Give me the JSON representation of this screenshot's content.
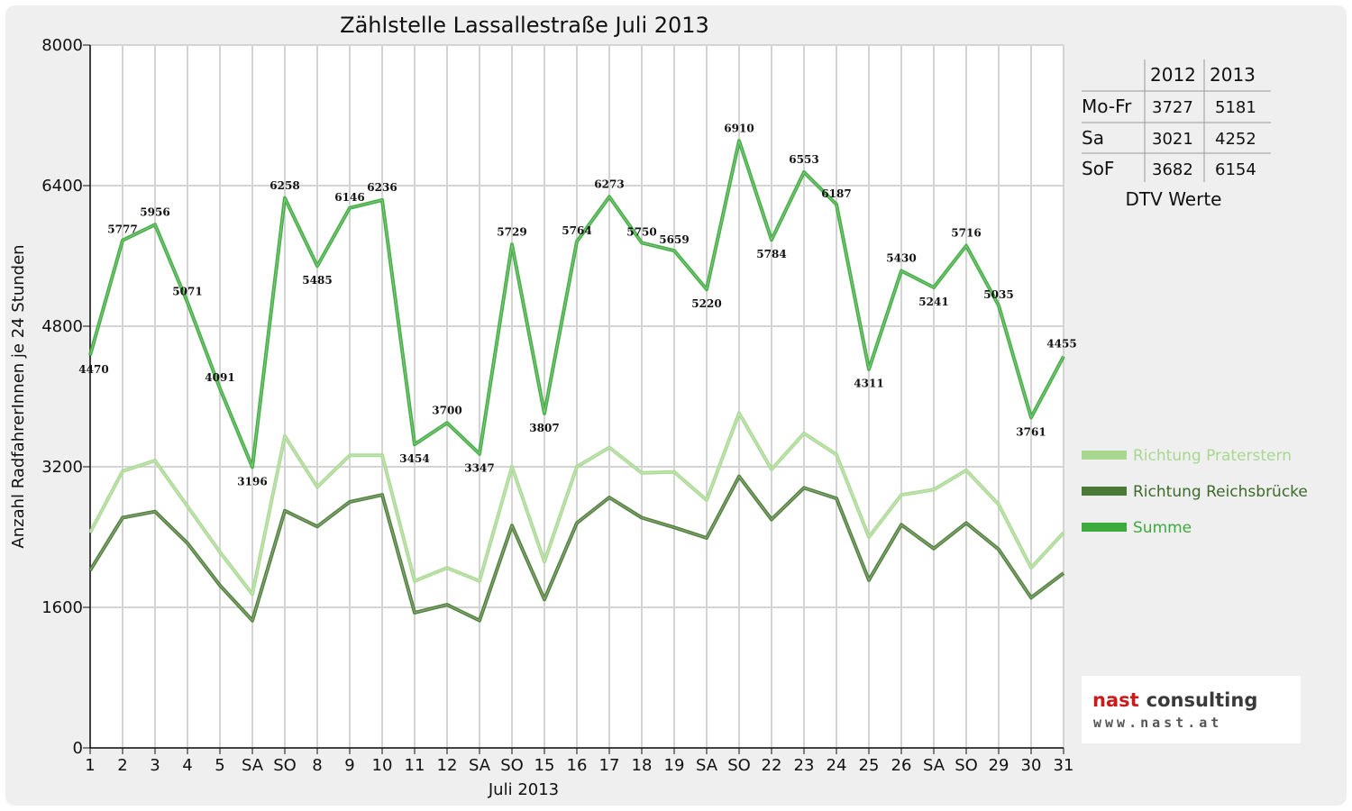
{
  "chart_data": {
    "type": "line",
    "title": "Zählstelle Lassallestraße Juli 2013",
    "xlabel": "Juli 2013",
    "ylabel": "Anzahl RadfahrerInnen je 24 Stunden",
    "ylim": [
      0,
      8000
    ],
    "yticks": [
      0,
      1600,
      3200,
      4800,
      6400,
      8000
    ],
    "categories": [
      "1",
      "2",
      "3",
      "4",
      "5",
      "SA",
      "SO",
      "8",
      "9",
      "10",
      "11",
      "12",
      "SA",
      "SO",
      "15",
      "16",
      "17",
      "18",
      "19",
      "SA",
      "SO",
      "22",
      "23",
      "24",
      "25",
      "26",
      "SA",
      "SO",
      "29",
      "30",
      "31"
    ],
    "highlight_categories": [
      "SO"
    ],
    "highlight_color": "#e00000",
    "grid": true,
    "legend_position": "right",
    "series": [
      {
        "name": "Richtung Praterstern",
        "color": "#a8d890",
        "values": [
          2450,
          3150,
          3270,
          2750,
          2230,
          1750,
          3550,
          2970,
          3330,
          3330,
          1900,
          2050,
          1900,
          3200,
          2120,
          3200,
          3420,
          3130,
          3140,
          2820,
          3810,
          3170,
          3580,
          3340,
          2400,
          2880,
          2940,
          3160,
          2770,
          2050,
          2450
        ]
      },
      {
        "name": "Richtung Reichsbrücke",
        "color": "#4a7a35",
        "values": [
          2020,
          2620,
          2690,
          2330,
          1850,
          1450,
          2700,
          2520,
          2800,
          2880,
          1540,
          1630,
          1450,
          2530,
          1690,
          2560,
          2850,
          2620,
          2510,
          2390,
          3090,
          2600,
          2960,
          2840,
          1910,
          2540,
          2270,
          2560,
          2260,
          1710,
          1990
        ]
      },
      {
        "name": "Summe",
        "color": "#3caa3c",
        "values": [
          4470,
          5777,
          5956,
          5071,
          4091,
          3196,
          6258,
          5485,
          6146,
          6236,
          3454,
          3700,
          3347,
          5729,
          3807,
          5764,
          6273,
          5750,
          5659,
          5220,
          6910,
          5784,
          6553,
          6187,
          4311,
          5430,
          5241,
          5716,
          5035,
          3761,
          4455
        ]
      }
    ],
    "data_labels": [
      "4470",
      "5777",
      "5956",
      "5071",
      "4091",
      "3196",
      "6258",
      "5485",
      "6146",
      "6236",
      "3454",
      "3700",
      "3347",
      "5729",
      "3807",
      "5764",
      "6273",
      "5750",
      "5659",
      "5220",
      "6910",
      "5784",
      "6553",
      "6187",
      "4311",
      "5430",
      "5241",
      "5716",
      "5035",
      "3761",
      "4455"
    ]
  },
  "dtv_table": {
    "columns": [
      "",
      "2012",
      "2013"
    ],
    "rows": [
      {
        "label": "Mo-Fr",
        "v2012": "3727",
        "v2013": "5181"
      },
      {
        "label": "Sa",
        "v2012": "3021",
        "v2013": "4252"
      },
      {
        "label": "SoF",
        "v2012": "3682",
        "v2013": "6154"
      }
    ],
    "caption": "DTV Werte"
  },
  "logo": {
    "word1": "nast",
    "word2": "consulting",
    "url": "www.nast.at"
  }
}
